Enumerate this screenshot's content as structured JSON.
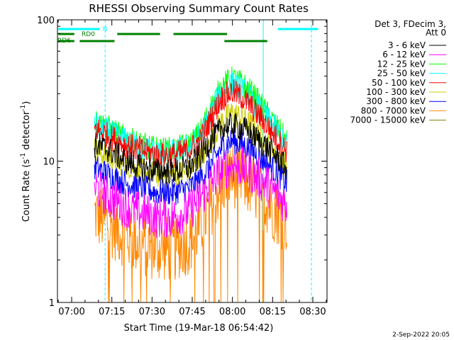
{
  "chart_data": {
    "type": "line",
    "title": "RHESSI Observing Summary Count Rates",
    "xlabel": "Start Time (19-Mar-18 06:54:42)",
    "ylabel_pre": "Count Rate (s",
    "ylabel_sup": "-1",
    "ylabel_post": " detector",
    "ylabel_sup2": "-1",
    "ylabel_close": ")",
    "x_ticks": [
      "07:00",
      "07:15",
      "07:30",
      "07:45",
      "08:00",
      "08:15",
      "08:30"
    ],
    "x_tick_minutes": [
      0,
      15,
      30,
      45,
      60,
      75,
      90
    ],
    "x_range_minutes": [
      -5.3,
      95.3
    ],
    "y_scale": "log",
    "y_ticks": [
      1,
      10,
      100
    ],
    "y_tick_labels": [
      "1",
      "10",
      "100"
    ],
    "ylim": [
      1,
      100
    ],
    "data_start_minute": 8.5,
    "data_end_minute": 80.5,
    "legend_header": [
      "Det 3, FDecim 3,",
      "Att 0"
    ],
    "legend_placement": "right",
    "series": [
      {
        "name": "3 - 6 keV",
        "color": "#000000",
        "points": [
          [
            9,
            13
          ],
          [
            14,
            12
          ],
          [
            20,
            10
          ],
          [
            26,
            9
          ],
          [
            32,
            8.5
          ],
          [
            38,
            8.5
          ],
          [
            44,
            9
          ],
          [
            48,
            11
          ],
          [
            52,
            14
          ],
          [
            56,
            17
          ],
          [
            60,
            18
          ],
          [
            64,
            17
          ],
          [
            68,
            15
          ],
          [
            72,
            13
          ],
          [
            76,
            11
          ],
          [
            80,
            9
          ]
        ]
      },
      {
        "name": "6 - 12 keV",
        "color": "#ff00ff",
        "points": [
          [
            9,
            6.5
          ],
          [
            14,
            5.5
          ],
          [
            20,
            4.8
          ],
          [
            26,
            4.3
          ],
          [
            32,
            4
          ],
          [
            38,
            4
          ],
          [
            44,
            4.5
          ],
          [
            48,
            5.5
          ],
          [
            52,
            7
          ],
          [
            56,
            8.5
          ],
          [
            60,
            9.5
          ],
          [
            64,
            9
          ],
          [
            68,
            8
          ],
          [
            72,
            7
          ],
          [
            76,
            6
          ],
          [
            80,
            5
          ]
        ]
      },
      {
        "name": "12 - 25 keV",
        "color": "#00ff00",
        "points": [
          [
            9,
            19
          ],
          [
            14,
            17
          ],
          [
            20,
            14.5
          ],
          [
            26,
            13
          ],
          [
            32,
            12
          ],
          [
            38,
            12
          ],
          [
            44,
            13
          ],
          [
            48,
            16
          ],
          [
            52,
            24
          ],
          [
            56,
            34
          ],
          [
            60,
            38
          ],
          [
            64,
            35
          ],
          [
            68,
            29
          ],
          [
            72,
            23
          ],
          [
            76,
            18
          ],
          [
            80,
            14
          ]
        ]
      },
      {
        "name": "25 - 50 keV",
        "color": "#00ffff",
        "points": [
          [
            9,
            18
          ],
          [
            14,
            16
          ],
          [
            20,
            14
          ],
          [
            26,
            12.5
          ],
          [
            32,
            11.5
          ],
          [
            38,
            11.5
          ],
          [
            44,
            12.5
          ],
          [
            48,
            15
          ],
          [
            52,
            22
          ],
          [
            56,
            31
          ],
          [
            60,
            35
          ],
          [
            64,
            32
          ],
          [
            68,
            26
          ],
          [
            72,
            21
          ],
          [
            76,
            17
          ],
          [
            80,
            13
          ]
        ]
      },
      {
        "name": "50 - 100 keV",
        "color": "#ff0000",
        "points": [
          [
            9,
            17
          ],
          [
            14,
            15
          ],
          [
            20,
            13
          ],
          [
            26,
            12
          ],
          [
            32,
            11
          ],
          [
            38,
            11
          ],
          [
            44,
            12
          ],
          [
            48,
            14
          ],
          [
            52,
            20
          ],
          [
            56,
            28
          ],
          [
            60,
            31
          ],
          [
            64,
            28
          ],
          [
            68,
            23
          ],
          [
            72,
            19
          ],
          [
            76,
            15
          ],
          [
            80,
            12
          ]
        ]
      },
      {
        "name": "100 - 300 keV",
        "color": "#cccc00",
        "points": [
          [
            9,
            12
          ],
          [
            14,
            10.5
          ],
          [
            20,
            9.5
          ],
          [
            26,
            8.5
          ],
          [
            32,
            8
          ],
          [
            38,
            8
          ],
          [
            44,
            8.5
          ],
          [
            48,
            10
          ],
          [
            52,
            14
          ],
          [
            56,
            19
          ],
          [
            60,
            22
          ],
          [
            64,
            20
          ],
          [
            68,
            17
          ],
          [
            72,
            14
          ],
          [
            76,
            11.5
          ],
          [
            80,
            9.5
          ]
        ]
      },
      {
        "name": "300 - 800 keV",
        "color": "#0000ff",
        "points": [
          [
            9,
            9
          ],
          [
            14,
            8
          ],
          [
            20,
            7
          ],
          [
            26,
            6.5
          ],
          [
            32,
            6
          ],
          [
            38,
            6
          ],
          [
            44,
            6.5
          ],
          [
            48,
            7.5
          ],
          [
            52,
            9.5
          ],
          [
            56,
            12.5
          ],
          [
            60,
            14
          ],
          [
            64,
            13
          ],
          [
            68,
            11.5
          ],
          [
            72,
            10
          ],
          [
            76,
            8.5
          ],
          [
            80,
            7
          ]
        ]
      },
      {
        "name": "800 - 7000 keV",
        "color": "#ff8800",
        "points": [
          [
            9,
            4.2
          ],
          [
            14,
            3.6
          ],
          [
            20,
            3
          ],
          [
            26,
            2.6
          ],
          [
            32,
            2.4
          ],
          [
            38,
            2.4
          ],
          [
            44,
            2.7
          ],
          [
            48,
            3.5
          ],
          [
            52,
            5
          ],
          [
            56,
            7
          ],
          [
            60,
            8
          ],
          [
            64,
            7.5
          ],
          [
            68,
            6.5
          ],
          [
            72,
            5.5
          ],
          [
            76,
            4.5
          ],
          [
            80,
            3.8
          ]
        ]
      },
      {
        "name": "7000 - 15000 keV",
        "color": "#808000",
        "points": []
      }
    ],
    "flag_bars": [
      {
        "label": "N",
        "color": "#00ffff",
        "segments": [
          [
            -5,
            10.5
          ],
          [
            77,
            92
          ]
        ],
        "level": "top"
      },
      {
        "label": "RD0",
        "color": "#008000",
        "segments": [
          [
            -5,
            1
          ],
          [
            17,
            33
          ],
          [
            38,
            58
          ]
        ],
        "level": "upper"
      },
      {
        "label": "RD6",
        "color": "#008000",
        "segments": [
          [
            -5,
            1
          ],
          [
            3,
            16
          ],
          [
            57,
            73
          ]
        ],
        "level": "lower"
      }
    ],
    "vlines": [
      {
        "minute": -5.3,
        "color": "#00ffff",
        "style": "solid"
      },
      {
        "minute": 12.5,
        "color": "#00ffff",
        "style": "dashed"
      },
      {
        "minute": 71.5,
        "color": "#00ffff",
        "style": "solid"
      },
      {
        "minute": 89.5,
        "color": "#00ffff",
        "style": "dashed"
      }
    ],
    "footer_text": "2-Sep-2022 20:05"
  }
}
